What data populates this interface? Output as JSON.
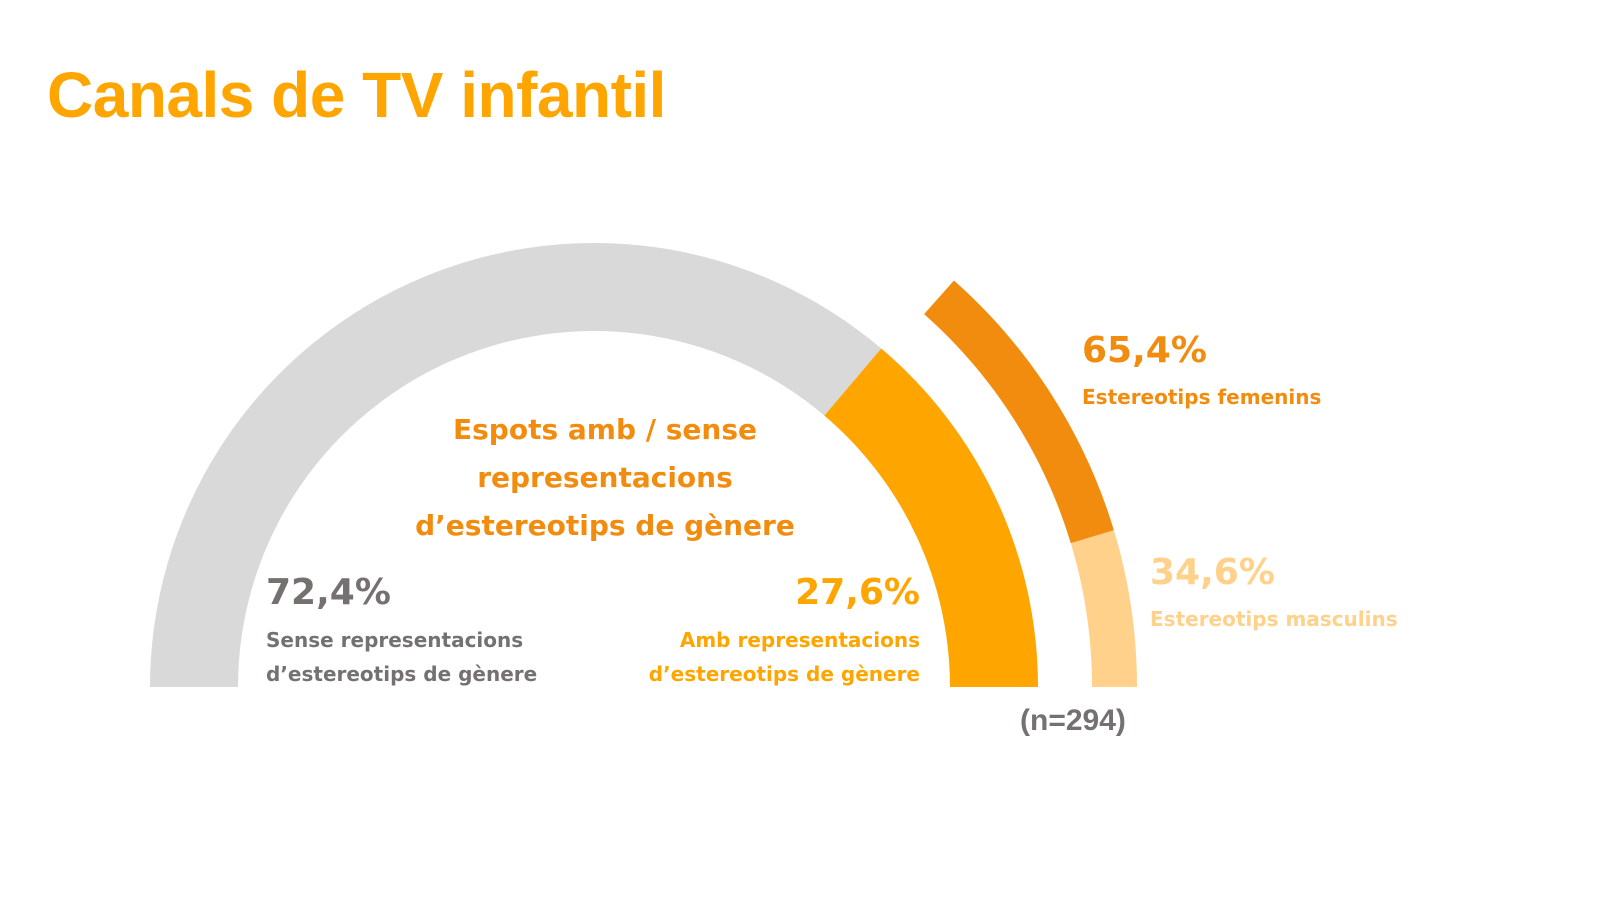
{
  "title": "Canals de TV infantil",
  "colors": {
    "title": "#FFA500",
    "grey_segment": "#D9D9D9",
    "amber_segment": "#FFA500",
    "dark_orange_segment": "#F28C0F",
    "light_orange_segment": "#FFD18A",
    "grey_text": "#767171"
  },
  "chart_data": {
    "type": "pie",
    "variant": "half-donut with breakdown arc",
    "title_lines": [
      "Espots amb / sense",
      "representacions",
      "d’estereotips de gènere"
    ],
    "sample_size_label": "(n=294)",
    "slices": [
      {
        "value": 72.4,
        "value_label": "72,4%",
        "label_lines": [
          "Sense representacions",
          "d’estereotips de gènere"
        ],
        "color": "#D9D9D9"
      },
      {
        "value": 27.6,
        "value_label": "27,6%",
        "label_lines": [
          "Amb representacions",
          "d’estereotips de gènere"
        ],
        "color": "#FFA500"
      }
    ],
    "breakdown_of": "Amb representacions d’estereotips de gènere",
    "breakdown": [
      {
        "value": 65.4,
        "value_label": "65,4%",
        "label": "Estereotips femenins",
        "color": "#F28C0F"
      },
      {
        "value": 34.6,
        "value_label": "34,6%",
        "label": "Estereotips masculins",
        "color": "#FFD18A"
      }
    ]
  }
}
